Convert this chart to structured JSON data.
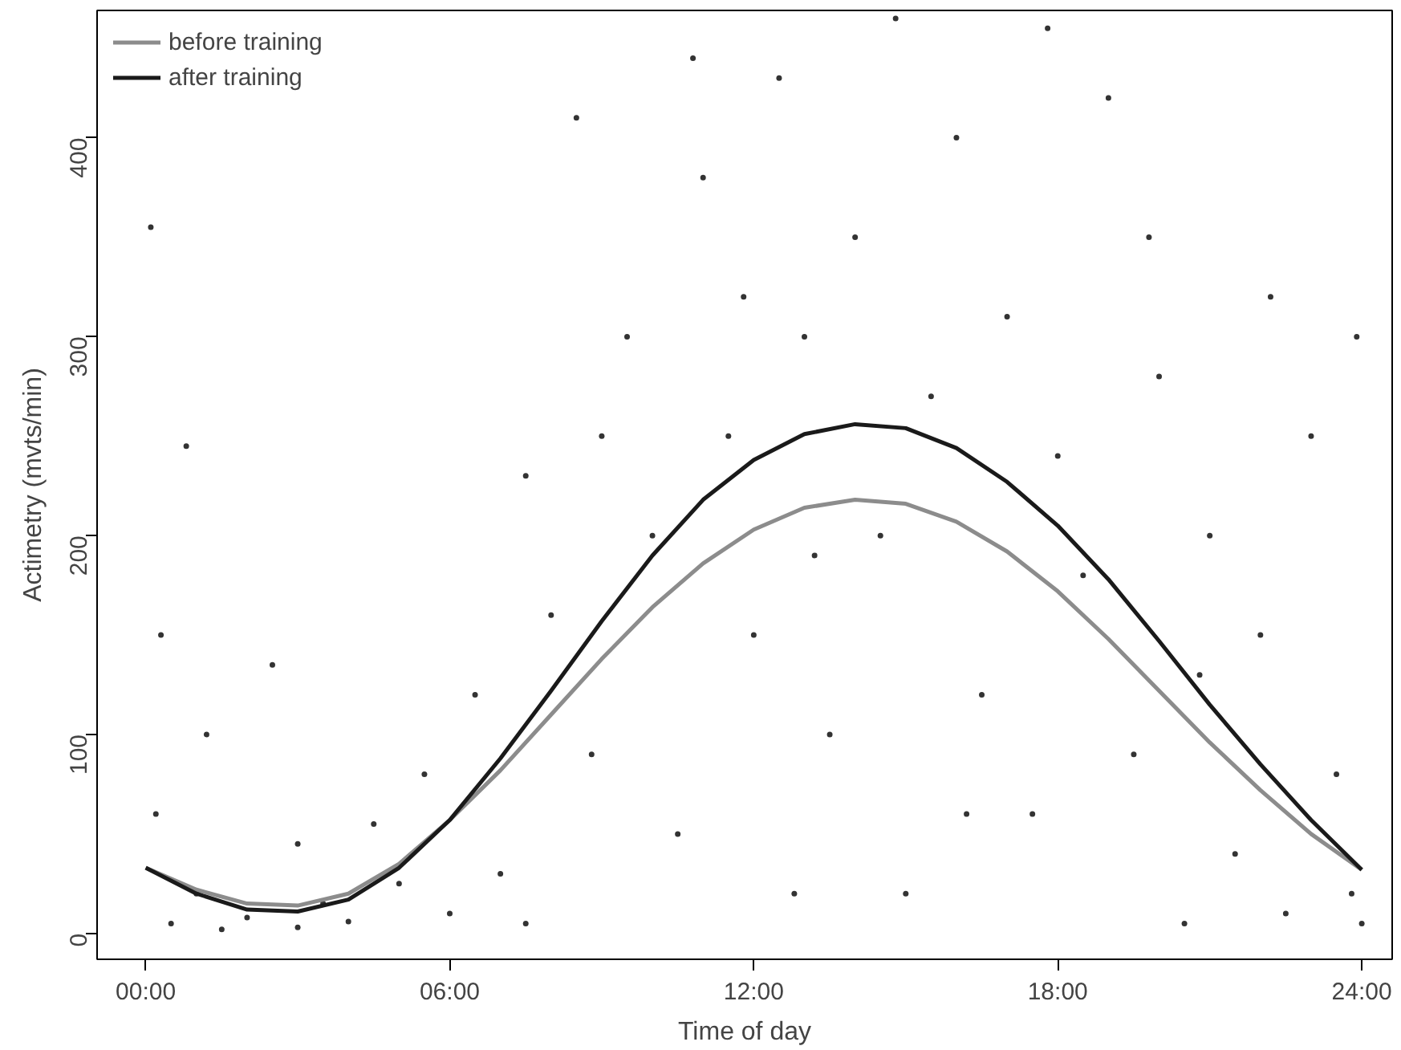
{
  "chart_data": {
    "type": "scatter",
    "xlabel": "Time of day",
    "ylabel": "Actimetry (mvts/min)",
    "xlim": [
      -0.96,
      24.6
    ],
    "ylim": [
      -13,
      464
    ],
    "xticks": [
      {
        "value": 0,
        "label": "00:00"
      },
      {
        "value": 6,
        "label": "06:00"
      },
      {
        "value": 12,
        "label": "12:00"
      },
      {
        "value": 18,
        "label": "18:00"
      },
      {
        "value": 24,
        "label": "24:00"
      }
    ],
    "yticks": [
      0,
      100,
      200,
      300,
      400
    ],
    "grid": false,
    "legend": "top left",
    "series": [
      {
        "color": "#333333",
        "x": [
          0.1,
          0.2,
          0.3,
          0.5,
          0.8,
          1,
          1.2,
          1.5,
          2,
          2.5,
          3,
          3,
          3.5,
          4,
          4.5,
          5,
          5.5,
          6,
          6.5,
          7,
          7.5,
          7.5,
          8,
          8.5,
          8.8,
          9,
          9.5,
          10,
          10.5,
          10.8,
          11,
          11.5,
          11.8,
          12,
          12.5,
          12.8,
          13,
          13.2,
          13.5,
          14,
          14.5,
          14.8,
          15,
          15.5,
          16,
          16.2,
          16.5,
          17,
          17.5,
          17.8,
          18,
          18.5,
          19,
          19.5,
          19.8,
          20,
          20.5,
          20.8,
          21,
          21.5,
          22,
          22.2,
          22.5,
          23,
          23.5,
          23.8,
          23.9,
          24
        ],
        "values": [
          355,
          60,
          150,
          5,
          245,
          20,
          100,
          2,
          8,
          135,
          3,
          45,
          15,
          6,
          55,
          25,
          80,
          10,
          120,
          30,
          5,
          230,
          160,
          410,
          90,
          250,
          300,
          200,
          50,
          440,
          380,
          250,
          320,
          150,
          430,
          20,
          300,
          190,
          100,
          350,
          200,
          460,
          20,
          270,
          400,
          60,
          120,
          310,
          60,
          455,
          240,
          180,
          420,
          90,
          350,
          280,
          5,
          130,
          200,
          40,
          150,
          320,
          10,
          250,
          80,
          20,
          300,
          5
        ]
      },
      {
        "type": "line",
        "name": "before training",
        "color": "#8c8c8c",
        "x": [
          0,
          1,
          2,
          3,
          4,
          5,
          6,
          7,
          8,
          9,
          10,
          11,
          12,
          13,
          14,
          15,
          16,
          17,
          18,
          19,
          20,
          21,
          22,
          23,
          24
        ],
        "values": [
          33,
          22,
          15,
          14,
          20,
          35,
          57,
          82,
          110,
          138,
          164,
          186,
          203,
          214,
          218,
          216,
          207,
          192,
          172,
          148,
          122,
          96,
          72,
          50,
          32
        ]
      },
      {
        "type": "line",
        "name": "after training",
        "color": "#1a1a1a",
        "x": [
          0,
          1,
          2,
          3,
          4,
          5,
          6,
          7,
          8,
          9,
          10,
          11,
          12,
          13,
          14,
          15,
          16,
          17,
          18,
          19,
          20,
          21,
          22,
          23,
          24
        ],
        "values": [
          33,
          20,
          12,
          11,
          17,
          33,
          57,
          88,
          122,
          157,
          190,
          218,
          238,
          251,
          256,
          254,
          244,
          227,
          205,
          178,
          147,
          115,
          85,
          57,
          32
        ]
      }
    ]
  }
}
